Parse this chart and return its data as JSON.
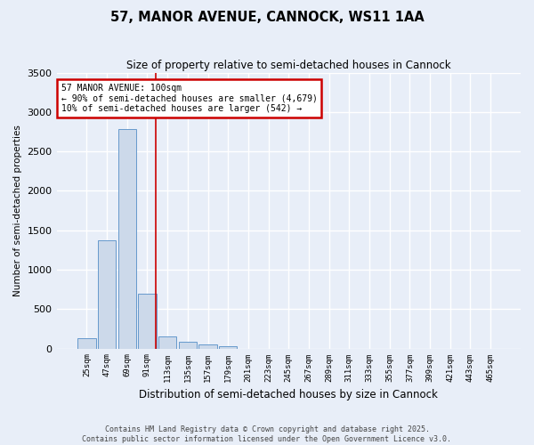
{
  "title": "57, MANOR AVENUE, CANNOCK, WS11 1AA",
  "subtitle": "Size of property relative to semi-detached houses in Cannock",
  "xlabel": "Distribution of semi-detached houses by size in Cannock",
  "ylabel": "Number of semi-detached properties",
  "bar_color": "#ccd9ea",
  "bar_edge_color": "#6699cc",
  "background_color": "#e8eef8",
  "grid_color": "#ffffff",
  "annotation_box_text_line1": "57 MANOR AVENUE: 100sqm",
  "annotation_box_text_line2": "← 90% of semi-detached houses are smaller (4,679)",
  "annotation_box_text_line3": "10% of semi-detached houses are larger (542) →",
  "annotation_box_color": "#ffffff",
  "annotation_box_edge_color": "#cc0000",
  "annotation_line_color": "#cc0000",
  "footer_text": "Contains HM Land Registry data © Crown copyright and database right 2025.\nContains public sector information licensed under the Open Government Licence v3.0.",
  "categories": [
    "25sqm",
    "47sqm",
    "69sqm",
    "91sqm",
    "113sqm",
    "135sqm",
    "157sqm",
    "179sqm",
    "201sqm",
    "223sqm",
    "245sqm",
    "267sqm",
    "289sqm",
    "311sqm",
    "333sqm",
    "355sqm",
    "377sqm",
    "399sqm",
    "421sqm",
    "443sqm",
    "465sqm"
  ],
  "values": [
    130,
    1370,
    2790,
    700,
    155,
    90,
    55,
    30,
    0,
    0,
    0,
    0,
    0,
    0,
    0,
    0,
    0,
    0,
    0,
    0,
    0
  ],
  "ylim": [
    0,
    3500
  ],
  "yticks": [
    0,
    500,
    1000,
    1500,
    2000,
    2500,
    3000,
    3500
  ],
  "red_line_x": 3.42
}
